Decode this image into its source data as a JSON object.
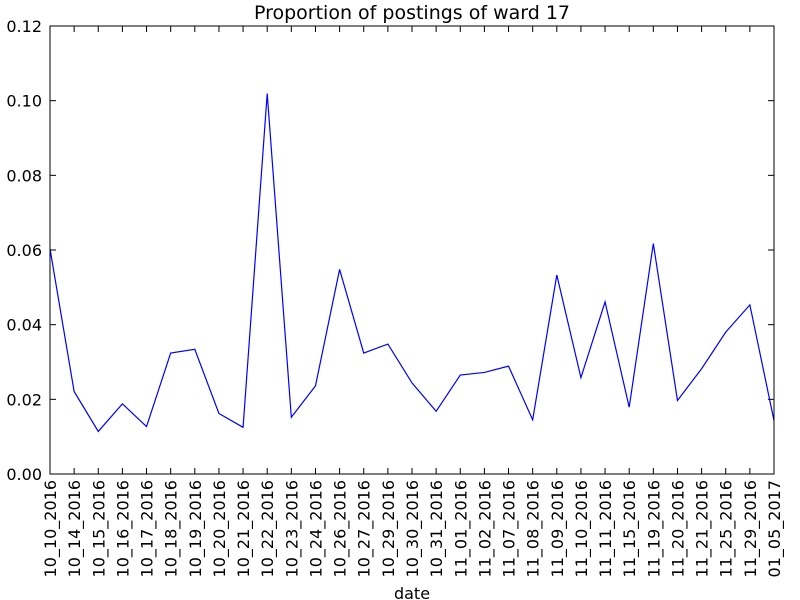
{
  "chart_data": {
    "type": "line",
    "title": "Proportion of postings of ward 17",
    "xlabel": "date",
    "ylabel": "",
    "ylim": [
      0,
      0.12
    ],
    "yticks": [
      "0.00",
      "0.02",
      "0.04",
      "0.06",
      "0.08",
      "0.10",
      "0.12"
    ],
    "grid": false,
    "legend": "none",
    "categories": [
      "10_10_2016",
      "10_14_2016",
      "10_15_2016",
      "10_16_2016",
      "10_17_2016",
      "10_18_2016",
      "10_19_2016",
      "10_20_2016",
      "10_21_2016",
      "10_22_2016",
      "10_23_2016",
      "10_24_2016",
      "10_26_2016",
      "10_27_2016",
      "10_29_2016",
      "10_30_2016",
      "10_31_2016",
      "11_01_2016",
      "11_02_2016",
      "11_07_2016",
      "11_08_2016",
      "11_09_2016",
      "11_10_2016",
      "11_11_2016",
      "11_15_2016",
      "11_19_2016",
      "11_20_2016",
      "11_21_2016",
      "11_25_2016",
      "11_29_2016",
      "01_05_2017"
    ],
    "series": [
      {
        "color": "#0000ff",
        "values": [
          0.0603,
          0.0221,
          0.0114,
          0.0188,
          0.0127,
          0.0324,
          0.0334,
          0.0162,
          0.0125,
          0.1019,
          0.0152,
          0.0236,
          0.0548,
          0.0324,
          0.0348,
          0.0244,
          0.0168,
          0.0265,
          0.0272,
          0.0289,
          0.0145,
          0.0533,
          0.0258,
          0.0461,
          0.0179,
          0.0617,
          0.0197,
          0.0282,
          0.038,
          0.0453,
          0.0143
        ]
      }
    ]
  }
}
